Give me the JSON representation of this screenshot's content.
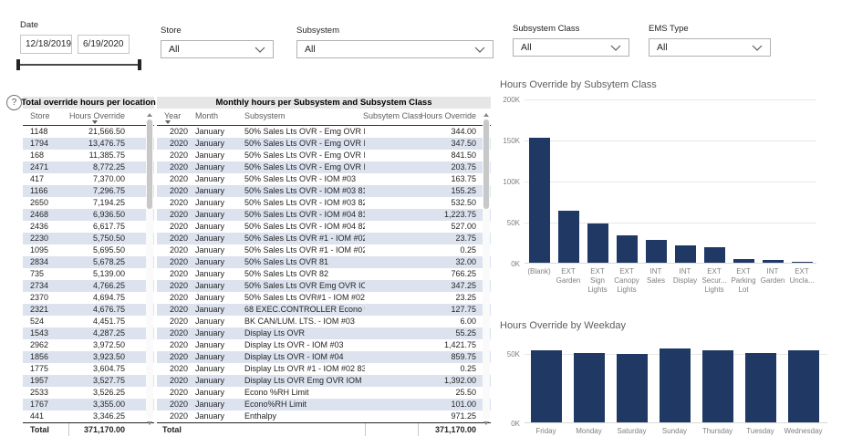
{
  "filters": {
    "date": {
      "label": "Date",
      "start": "12/18/2019",
      "end": "6/19/2020"
    },
    "store": {
      "label": "Store",
      "value": "All"
    },
    "subsystem": {
      "label": "Subsystem",
      "value": "All"
    },
    "subsystem_class": {
      "label": "Subsystem Class",
      "value": "All"
    },
    "ems_type": {
      "label": "EMS Type",
      "value": "All"
    }
  },
  "help": {
    "icon": "?"
  },
  "location_table": {
    "title": "Total override hours per location",
    "columns": [
      "Store",
      "Hours Override"
    ],
    "sort_column": "Hours Override",
    "rows": [
      [
        "1148",
        "21,566.50"
      ],
      [
        "1794",
        "13,476.75"
      ],
      [
        "168",
        "11,385.75"
      ],
      [
        "2471",
        "8,772.25"
      ],
      [
        "417",
        "7,370.00"
      ],
      [
        "1166",
        "7,296.75"
      ],
      [
        "2650",
        "7,194.25"
      ],
      [
        "2468",
        "6,936.50"
      ],
      [
        "2436",
        "6,617.75"
      ],
      [
        "2230",
        "5,750.50"
      ],
      [
        "1095",
        "5,695.50"
      ],
      [
        "2834",
        "5,678.25"
      ],
      [
        "735",
        "5,139.00"
      ],
      [
        "2734",
        "4,766.25"
      ],
      [
        "2370",
        "4,694.75"
      ],
      [
        "2321",
        "4,676.75"
      ],
      [
        "524",
        "4,451.75"
      ],
      [
        "1543",
        "4,287.25"
      ],
      [
        "2962",
        "3,972.50"
      ],
      [
        "1856",
        "3,923.50"
      ],
      [
        "1775",
        "3,604.75"
      ],
      [
        "1957",
        "3,527.75"
      ],
      [
        "2533",
        "3,526.25"
      ],
      [
        "1767",
        "3,355.00"
      ],
      [
        "441",
        "3,346.25"
      ]
    ],
    "total_label": "Total",
    "total_value": "371,170.00"
  },
  "monthly_table": {
    "title": "Monthly hours per Subsystem and Subsystem Class",
    "columns": [
      "Year",
      "Month",
      "Subsystem",
      "Subsytem Class",
      "Hours Override"
    ],
    "sort_column": "Year",
    "rows": [
      [
        "2020",
        "January",
        "50% Sales Lts OVR - Emg OVR IOM 121",
        "",
        "344.00"
      ],
      [
        "2020",
        "January",
        "50% Sales Lts OVR - Emg OVR IOM 122",
        "",
        "347.50"
      ],
      [
        "2020",
        "January",
        "50% Sales Lts OVR - Emg OVR IOM 81",
        "",
        "841.50"
      ],
      [
        "2020",
        "January",
        "50% Sales Lts OVR - Emg OVR IOM 82",
        "",
        "203.75"
      ],
      [
        "2020",
        "January",
        "50% Sales Lts OVR - IOM #03",
        "",
        "163.75"
      ],
      [
        "2020",
        "January",
        "50% Sales Lts OVR - IOM #03 81",
        "",
        "155.25"
      ],
      [
        "2020",
        "January",
        "50% Sales Lts OVR - IOM #03 82",
        "",
        "532.50"
      ],
      [
        "2020",
        "January",
        "50% Sales Lts OVR - IOM #04 81",
        "",
        "1,223.75"
      ],
      [
        "2020",
        "January",
        "50% Sales Lts OVR - IOM #04 82",
        "",
        "527.00"
      ],
      [
        "2020",
        "January",
        "50% Sales Lts OVR #1 - IOM #02 81",
        "",
        "23.75"
      ],
      [
        "2020",
        "January",
        "50% Sales Lts OVR #1 - IOM #02 82",
        "",
        "0.25"
      ],
      [
        "2020",
        "January",
        "50% Sales Lts OVR 81",
        "",
        "32.00"
      ],
      [
        "2020",
        "January",
        "50% Sales Lts OVR 82",
        "",
        "766.25"
      ],
      [
        "2020",
        "January",
        "50% Sales Lts OVR Emg OVR IOM",
        "",
        "347.25"
      ],
      [
        "2020",
        "January",
        "50% Sales Lts OVR#1 - IOM #02 82",
        "",
        "23.25"
      ],
      [
        "2020",
        "January",
        "68 EXEC.CONTROLLER Econo %RH Limit",
        "",
        "127.75"
      ],
      [
        "2020",
        "January",
        "BK CAN/LUM. LTS. - IOM #03",
        "",
        "6.00"
      ],
      [
        "2020",
        "January",
        "Display Lts OVR",
        "",
        "55.25"
      ],
      [
        "2020",
        "January",
        "Display Lts OVR - IOM #03",
        "",
        "1,421.75"
      ],
      [
        "2020",
        "January",
        "Display Lts OVR - IOM #04",
        "",
        "859.75"
      ],
      [
        "2020",
        "January",
        "Display Lts OVR #1 - IOM #02 83",
        "",
        "0.25"
      ],
      [
        "2020",
        "January",
        "Display Lts OVR Emg OVR IOM",
        "",
        "1,392.00"
      ],
      [
        "2020",
        "January",
        "Econo %RH Limit",
        "",
        "25.50"
      ],
      [
        "2020",
        "January",
        "Econo%RH Limit",
        "",
        "101.00"
      ],
      [
        "2020",
        "January",
        "Enthalpy",
        "",
        "971.25"
      ]
    ],
    "total_label": "Total",
    "total_value": "371,170.00"
  },
  "chart_data": [
    {
      "type": "bar",
      "title": "Hours Override by Subsytem Class",
      "categories": [
        "(Blank)",
        "EXT Garden",
        "EXT Sign Lights",
        "EXT Canopy Lights",
        "INT Sales",
        "INT Display",
        "EXT Secur... Lights",
        "EXT Parking Lot",
        "INT Garden",
        "EXT Uncla..."
      ],
      "values": [
        152000,
        63500,
        47500,
        33000,
        27500,
        21000,
        19000,
        4800,
        3300,
        1200
      ],
      "xlabel": "",
      "ylabel": "",
      "ylim": [
        0,
        200000
      ],
      "ytick_values": [
        0,
        50000,
        100000,
        150000,
        200000
      ],
      "ytick_labels": [
        "0K",
        "50K",
        "100K",
        "150K",
        "200K"
      ],
      "grid": true,
      "legend": "none",
      "bar_color": "#1f3864"
    },
    {
      "type": "bar",
      "title": "Hours Override by Weekday",
      "categories": [
        "Friday",
        "Monday",
        "Saturday",
        "Sunday",
        "Thursday",
        "Tuesday",
        "Wednesday"
      ],
      "values": [
        51800,
        50200,
        49300,
        53600,
        52300,
        50200,
        51800
      ],
      "xlabel": "",
      "ylabel": "",
      "ylim": [
        0,
        60000
      ],
      "ytick_values": [
        0,
        50000
      ],
      "ytick_labels": [
        "0K",
        "50K"
      ],
      "grid": true,
      "legend": "none",
      "bar_color": "#1f3864"
    }
  ]
}
